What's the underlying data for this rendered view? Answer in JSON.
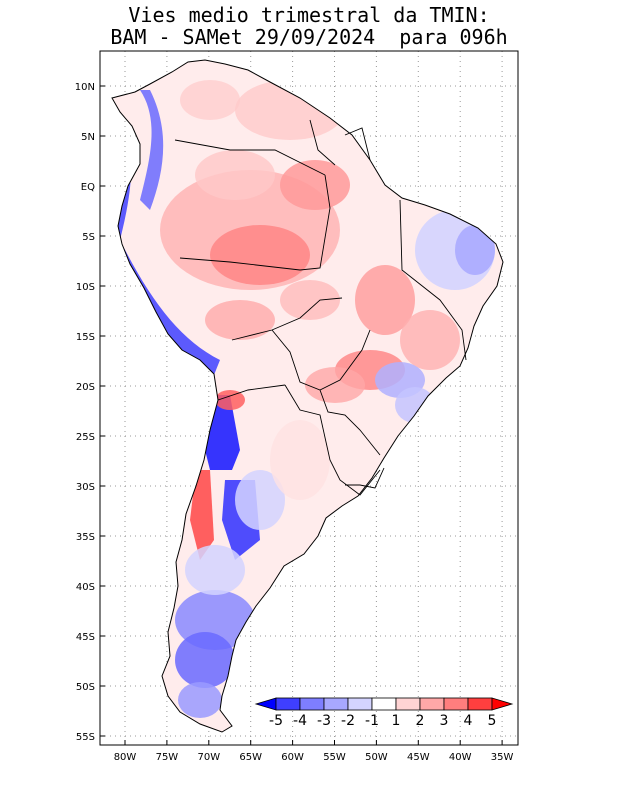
{
  "title": {
    "line1": "Vies medio trimestral da TMIN:",
    "line2": "BAM - SAMet 29/09/2024  para 096h"
  },
  "map": {
    "lat_labels": [
      "10N",
      "5N",
      "EQ",
      "5S",
      "10S",
      "15S",
      "20S",
      "25S",
      "30S",
      "35S",
      "40S",
      "45S",
      "50S",
      "55S"
    ],
    "lon_labels": [
      "80W",
      "75W",
      "70W",
      "65W",
      "60W",
      "55W",
      "50W",
      "45W",
      "40W",
      "35W"
    ]
  },
  "colorbar": {
    "labels": [
      "-5",
      "-4",
      "-3",
      "-2",
      "-1",
      "1",
      "2",
      "3",
      "4",
      "5"
    ],
    "colors": [
      "#0000ff",
      "#3f3fff",
      "#7e7eff",
      "#a8a8ff",
      "#d4d4ff",
      "#ffffff",
      "#ffd4d4",
      "#ffa8a8",
      "#ff7e7e",
      "#ff3f3f",
      "#ff0000"
    ]
  }
}
